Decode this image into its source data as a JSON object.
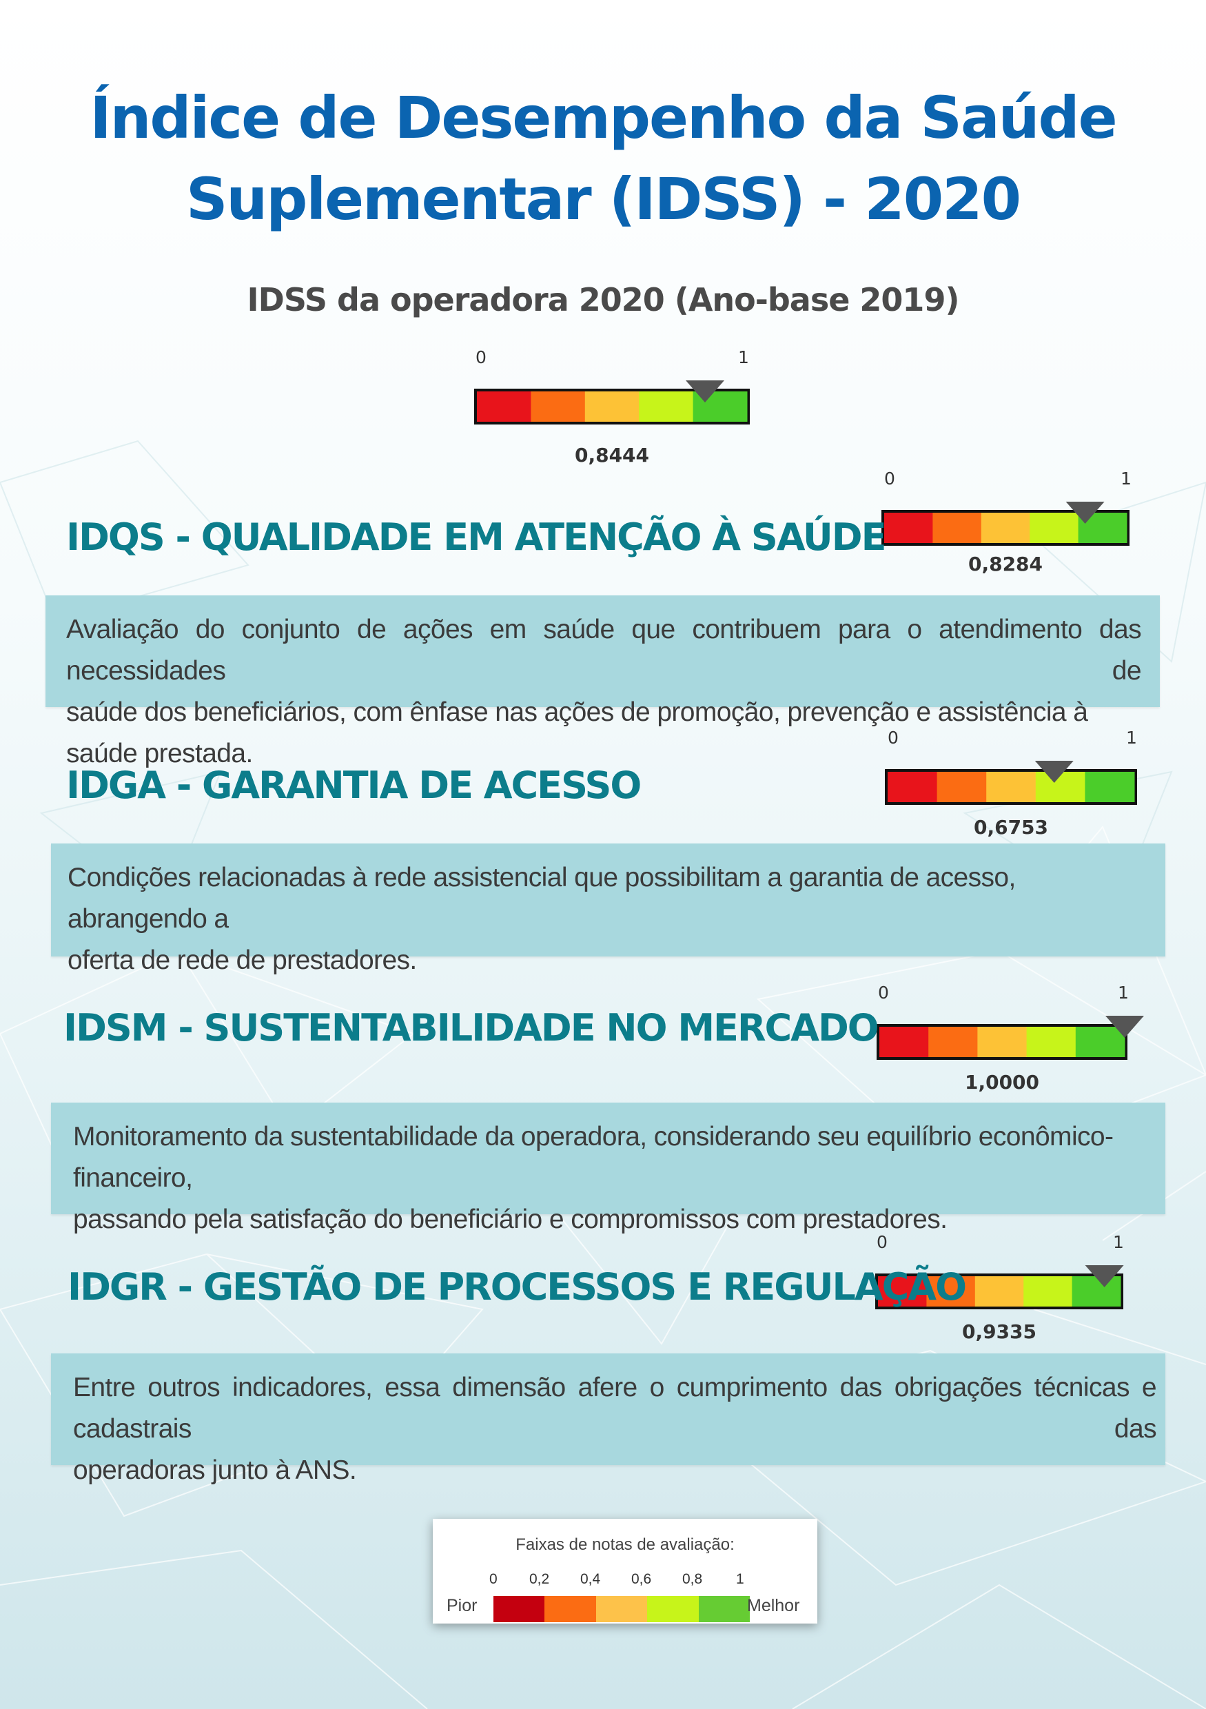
{
  "header": {
    "title_line1": "Índice de Desempenho da Saúde",
    "title_line2": "Suplementar (IDSS) - 2020",
    "subtitle": "IDSS da operadora 2020 (Ano-base 2019)"
  },
  "colors": {
    "title": "#0b64b0",
    "section_title": "#0c7d8b",
    "box": "#a8d8de",
    "bands": [
      "#e8141b",
      "#fb6c13",
      "#fdc236",
      "#c7f41a",
      "#4bcd2a"
    ]
  },
  "gauges": [
    {
      "id": "overall",
      "min_label": "0",
      "max_label": "1",
      "value": 0.8444,
      "value_label": "0,8444"
    },
    {
      "id": "idqs",
      "min_label": "0",
      "max_label": "1",
      "value": 0.8284,
      "value_label": "0,8284"
    },
    {
      "id": "idga",
      "min_label": "0",
      "max_label": "1",
      "value": 0.6753,
      "value_label": "0,6753"
    },
    {
      "id": "idsm",
      "min_label": "0",
      "max_label": "1",
      "value": 1.0,
      "value_label": "1,0000"
    },
    {
      "id": "idgr",
      "min_label": "0",
      "max_label": "1",
      "value": 0.9335,
      "value_label": "0,9335"
    }
  ],
  "sections": [
    {
      "id": "idqs",
      "title": "IDQS - QUALIDADE EM ATENÇÃO À SAÚDE",
      "line1": "Avaliação do conjunto de ações em saúde que contribuem para o atendimento das necessidades de",
      "line2": "saúde dos beneficiários, com ênfase nas ações de promoção, prevenção e assistência à saúde prestada."
    },
    {
      "id": "idga",
      "title": "IDGA - GARANTIA DE ACESSO",
      "line1": "Condições relacionadas à rede assistencial que possibilitam a garantia de acesso, abrangendo a",
      "line2": "oferta de rede de prestadores."
    },
    {
      "id": "idsm",
      "title": "IDSM - SUSTENTABILIDADE NO MERCADO",
      "line1": "Monitoramento da sustentabilidade da operadora, considerando seu equilíbrio econômico-financeiro,",
      "line2": "passando pela satisfação do beneficiário e compromissos com prestadores."
    },
    {
      "id": "idgr",
      "title": "IDGR - GESTÃO DE PROCESSOS E REGULAÇÃO",
      "line1": "Entre outros indicadores, essa dimensão afere o cumprimento das obrigações técnicas e cadastrais das",
      "line2": "operadoras junto à ANS."
    }
  ],
  "legend": {
    "title": "Faixas de notas de avaliação:",
    "ticks": [
      "0",
      "0,2",
      "0,4",
      "0,6",
      "0,8",
      "1"
    ],
    "left_label": "Pior",
    "right_label": "Melhor",
    "colors": [
      "#c4000f",
      "#fb6c13",
      "#fdc24a",
      "#c7f41a",
      "#66cc33"
    ]
  }
}
